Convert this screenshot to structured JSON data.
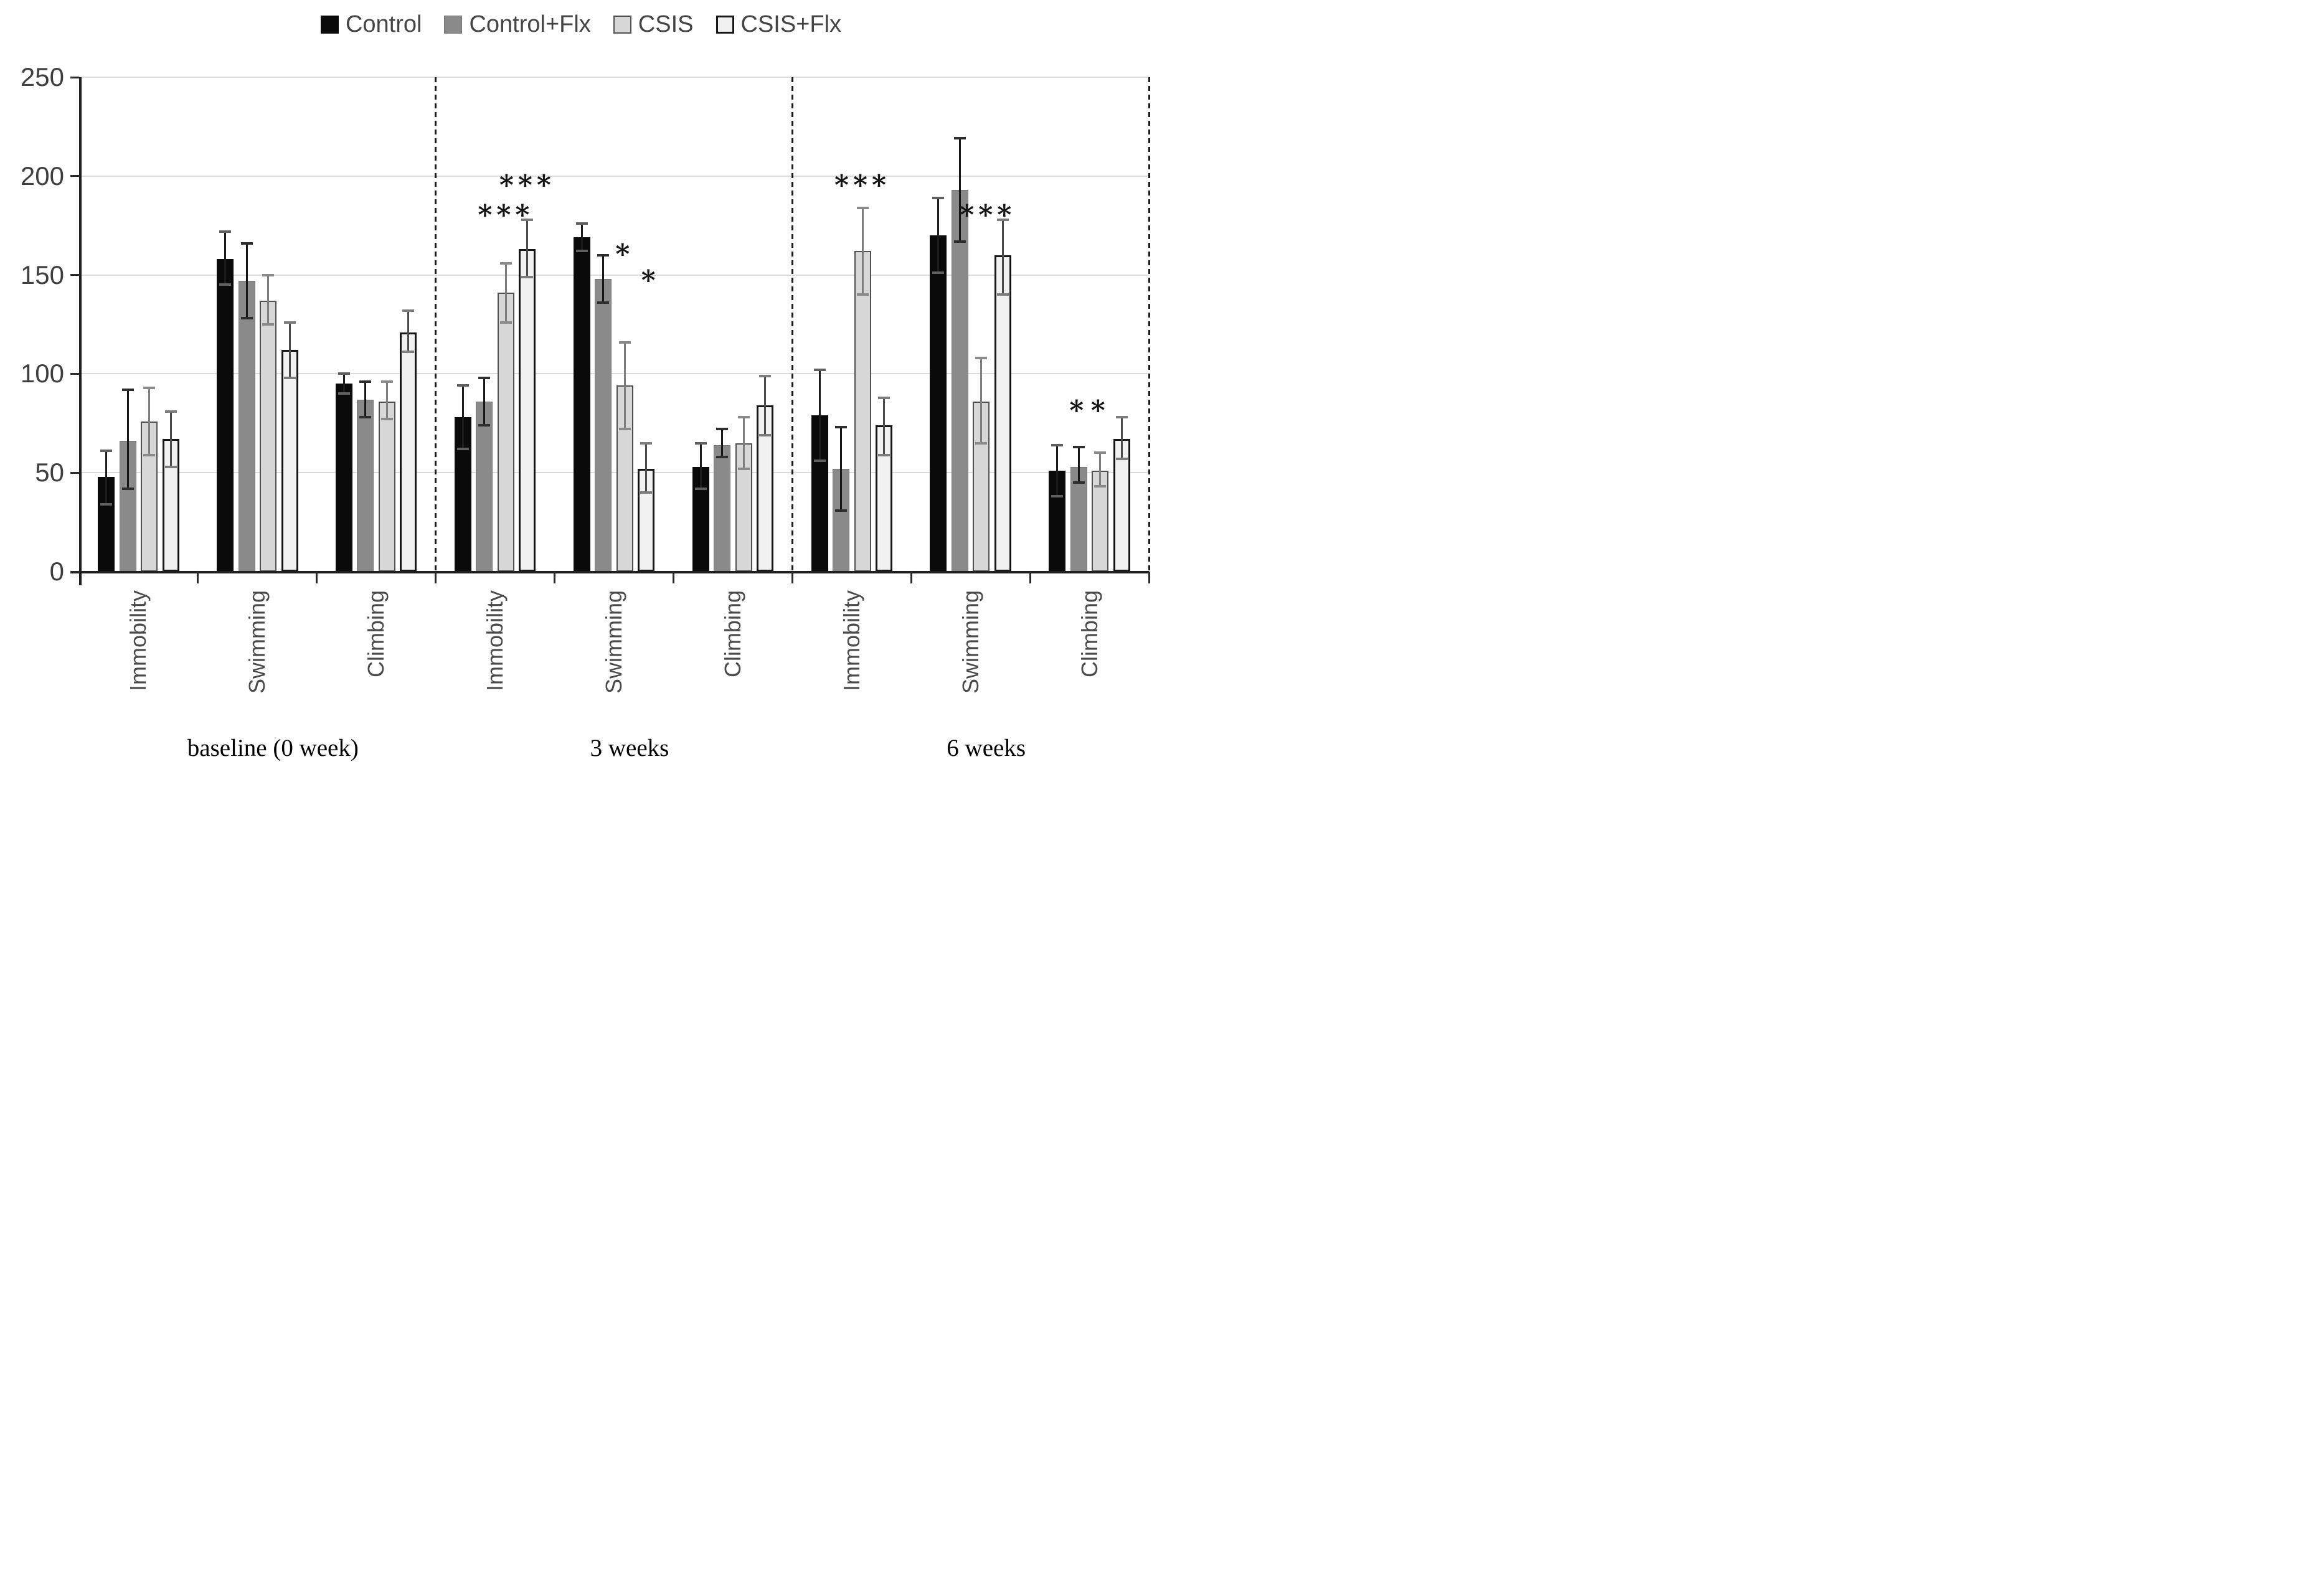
{
  "chart_data": {
    "type": "bar",
    "title": "",
    "xlabel": "",
    "ylabel": "",
    "ylim": [
      0,
      250
    ],
    "yticks": [
      0,
      50,
      100,
      150,
      200,
      250
    ],
    "grid": true,
    "legend_position": "top-center",
    "series": [
      {
        "name": "Control",
        "fill": "#0a0a0a",
        "border": "#0a0a0a",
        "border_width": 1,
        "err_color": "#1c1c1c",
        "cap_color": "#5f5f5f"
      },
      {
        "name": "Control+Flx",
        "fill": "#8a8a8a",
        "border": "#767676",
        "border_width": 1,
        "err_color": "#161616",
        "cap_color": "#2e2e2e"
      },
      {
        "name": "CSIS",
        "fill": "#d7d7d7",
        "border": "#4f4f4f",
        "border_width": 2,
        "err_color": "#7d7d7d",
        "cap_color": "#8a8a8a"
      },
      {
        "name": "CSIS+Flx",
        "fill": "#f1f1f1",
        "border": "#161616",
        "border_width": 3,
        "err_color": "#4a4a4a",
        "cap_color": "#7d7d7d"
      }
    ],
    "groups": [
      {
        "label": "baseline (0 week)",
        "categories": [
          {
            "label": "Immobility",
            "values": [
              48,
              66,
              76,
              67
            ],
            "err_lo": [
              34,
              42,
              59,
              53
            ],
            "err_hi": [
              61,
              92,
              93,
              81
            ],
            "sig": [
              null,
              null,
              null,
              null
            ]
          },
          {
            "label": "Swimming",
            "values": [
              158,
              147,
              137,
              112
            ],
            "err_lo": [
              145,
              128,
              125,
              98
            ],
            "err_hi": [
              172,
              166,
              150,
              126
            ],
            "sig": [
              null,
              null,
              null,
              null
            ]
          },
          {
            "label": "Climbing",
            "values": [
              95,
              87,
              86,
              121
            ],
            "err_lo": [
              90,
              78,
              77,
              111
            ],
            "err_hi": [
              100,
              96,
              96,
              132
            ],
            "sig": [
              null,
              null,
              null,
              null
            ]
          }
        ]
      },
      {
        "label": "3 weeks",
        "categories": [
          {
            "label": "Immobility",
            "values": [
              78,
              86,
              141,
              163
            ],
            "err_lo": [
              62,
              74,
              126,
              149
            ],
            "err_hi": [
              94,
              98,
              156,
              178
            ],
            "sig": [
              null,
              null,
              {
                "t": "***",
                "y": 182,
                "dx": 0
              },
              {
                "t": "***",
                "y": 197,
                "dx": 0
              }
            ]
          },
          {
            "label": "Swimming",
            "values": [
              169,
              148,
              94,
              52
            ],
            "err_lo": [
              162,
              136,
              72,
              40
            ],
            "err_hi": [
              176,
              160,
              116,
              65
            ],
            "sig": [
              null,
              null,
              {
                "t": "*",
                "y": 162,
                "dx": 0
              },
              {
                "t": "*",
                "y": 149,
                "dx": 0.2
              }
            ]
          },
          {
            "label": "Climbing",
            "values": [
              53,
              64,
              65,
              84
            ],
            "err_lo": [
              42,
              58,
              52,
              69
            ],
            "err_hi": [
              65,
              72,
              78,
              99
            ],
            "sig": [
              null,
              null,
              null,
              null
            ]
          }
        ]
      },
      {
        "label": "6 weeks",
        "categories": [
          {
            "label": "Immobility",
            "values": [
              79,
              52,
              162,
              74
            ],
            "err_lo": [
              56,
              31,
              140,
              59
            ],
            "err_hi": [
              102,
              73,
              184,
              88
            ],
            "sig": [
              null,
              null,
              {
                "t": "***",
                "y": 197,
                "dx": 0
              },
              null
            ]
          },
          {
            "label": "Swimming",
            "values": [
              170,
              193,
              86,
              160
            ],
            "err_lo": [
              151,
              167,
              65,
              140
            ],
            "err_hi": [
              189,
              219,
              108,
              178
            ],
            "sig": [
              null,
              null,
              null,
              {
                "t": "***",
                "y": 182,
                "dx": -0.7
              }
            ]
          },
          {
            "label": "Climbing",
            "values": [
              51,
              53,
              51,
              67
            ],
            "err_lo": [
              38,
              45,
              43,
              57
            ],
            "err_hi": [
              64,
              63,
              60,
              78
            ],
            "sig": [
              null,
              {
                "t": "*",
                "y": 83,
                "dx": 0
              },
              {
                "t": "*",
                "y": 83,
                "dx": 0
              },
              null
            ]
          }
        ]
      }
    ],
    "colors": {
      "gridline": "#dcdcdc",
      "axis": "#1f1f1f",
      "dashed_separator": "#1c1c1c",
      "tick_label": "#3f3f3f",
      "category_label": "#4a4a4a",
      "group_label": "#000000",
      "legend_label": "#444444",
      "significance": "#141414"
    }
  }
}
